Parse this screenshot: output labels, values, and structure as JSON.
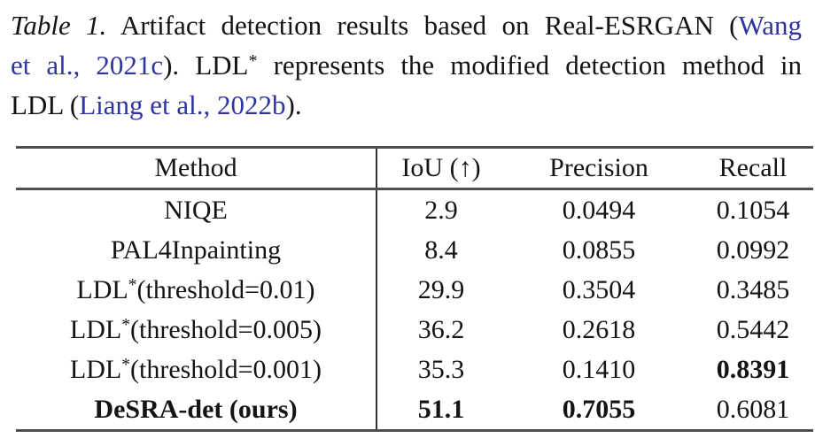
{
  "caption": {
    "lines": [
      [
        {
          "t": "Table 1.",
          "c": "italic"
        },
        {
          "t": " Artifact detection results based on Real-ESRGAN (",
          "c": ""
        },
        {
          "t": "Wang",
          "c": "link"
        }
      ],
      [
        {
          "t": "et al., 2021c",
          "c": "link"
        },
        {
          "t": "). LDL",
          "c": ""
        },
        {
          "t": "*",
          "c": "sup"
        },
        {
          "t": " represents the modified detection method in",
          "c": ""
        }
      ],
      [
        {
          "t": "LDL (",
          "c": ""
        },
        {
          "t": "Liang et al., 2022b",
          "c": "link"
        },
        {
          "t": ").",
          "c": ""
        }
      ]
    ]
  },
  "table": {
    "columns": [
      "Method",
      "IoU (↑)",
      "Precision",
      "Recall"
    ],
    "rows": [
      {
        "method": {
          "pre": "NIQE",
          "sup": "",
          "post": ""
        },
        "iou": "2.9",
        "precision": "0.0494",
        "recall": "0.1054",
        "bold": []
      },
      {
        "method": {
          "pre": "PAL4Inpainting",
          "sup": "",
          "post": ""
        },
        "iou": "8.4",
        "precision": "0.0855",
        "recall": "0.0992",
        "bold": []
      },
      {
        "method": {
          "pre": "LDL",
          "sup": "*",
          "post": "(threshold=0.01)"
        },
        "iou": "29.9",
        "precision": "0.3504",
        "recall": "0.3485",
        "bold": []
      },
      {
        "method": {
          "pre": "LDL",
          "sup": "*",
          "post": "(threshold=0.005)"
        },
        "iou": "36.2",
        "precision": "0.2618",
        "recall": "0.5442",
        "bold": []
      },
      {
        "method": {
          "pre": "LDL",
          "sup": "*",
          "post": "(threshold=0.001)"
        },
        "iou": "35.3",
        "precision": "0.1410",
        "recall": "0.8391",
        "bold": [
          "recall"
        ]
      },
      {
        "method": {
          "pre": "DeSRA-det (ours)",
          "sup": "",
          "post": ""
        },
        "iou": "51.1",
        "precision": "0.7055",
        "recall": "0.6081",
        "bold": [
          "method",
          "iou",
          "precision"
        ]
      }
    ]
  },
  "colors": {
    "link_blue": "#2e35a3",
    "rule_gray": "#4f4f4f",
    "text": "#141414"
  }
}
